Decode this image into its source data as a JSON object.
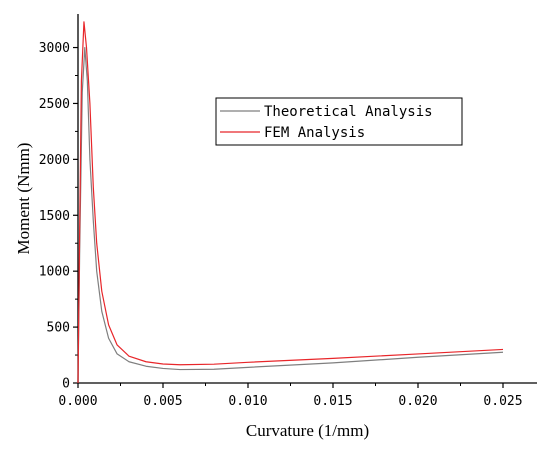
{
  "chart_data": {
    "type": "line",
    "title": "",
    "xlabel": "Curvature (1/mm)",
    "ylabel": "Moment (Nmm)",
    "xlim": [
      0,
      0.027
    ],
    "ylim": [
      0,
      3300
    ],
    "x_ticks": [
      0,
      0.005,
      0.01,
      0.015,
      0.02,
      0.025
    ],
    "x_tick_labels": [
      "0.000",
      "0.005",
      "0.010",
      "0.015",
      "0.020",
      "0.025"
    ],
    "y_ticks": [
      0,
      500,
      1000,
      1500,
      2000,
      2500,
      3000
    ],
    "y_tick_labels": [
      "0",
      "500",
      "1000",
      "1500",
      "2000",
      "2500",
      "3000"
    ],
    "grid": false,
    "legend_position": "upper-right",
    "series": [
      {
        "name": "Theoretical Analysis",
        "color": "#7f7f7f",
        "points": [
          [
            0,
            0
          ],
          [
            0.0001,
            1200
          ],
          [
            0.00025,
            2600
          ],
          [
            0.0004,
            3000
          ],
          [
            0.00055,
            2700
          ],
          [
            0.0007,
            2000
          ],
          [
            0.0009,
            1450
          ],
          [
            0.0011,
            1000
          ],
          [
            0.0014,
            640
          ],
          [
            0.0018,
            400
          ],
          [
            0.0023,
            260
          ],
          [
            0.003,
            190
          ],
          [
            0.004,
            150
          ],
          [
            0.005,
            130
          ],
          [
            0.006,
            120
          ],
          [
            0.008,
            123
          ],
          [
            0.01,
            140
          ],
          [
            0.015,
            180
          ],
          [
            0.02,
            230
          ],
          [
            0.025,
            275
          ]
        ]
      },
      {
        "name": "FEM Analysis",
        "color": "#e8262a",
        "points": [
          [
            0,
            0
          ],
          [
            0.0001,
            1400
          ],
          [
            0.0002,
            2700
          ],
          [
            0.00035,
            3230
          ],
          [
            0.0005,
            3000
          ],
          [
            0.0007,
            2500
          ],
          [
            0.0009,
            1750
          ],
          [
            0.0011,
            1250
          ],
          [
            0.0014,
            820
          ],
          [
            0.0018,
            520
          ],
          [
            0.0023,
            340
          ],
          [
            0.003,
            240
          ],
          [
            0.004,
            190
          ],
          [
            0.005,
            170
          ],
          [
            0.006,
            163
          ],
          [
            0.008,
            168
          ],
          [
            0.01,
            185
          ],
          [
            0.015,
            220
          ],
          [
            0.02,
            260
          ],
          [
            0.025,
            300
          ]
        ]
      }
    ]
  }
}
